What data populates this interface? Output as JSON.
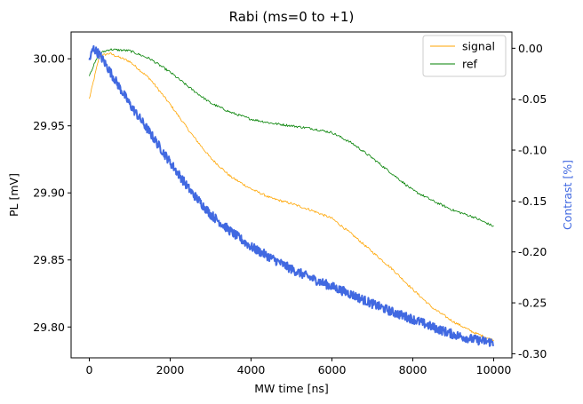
{
  "chart_data": {
    "type": "line",
    "title": "Rabi (ms=0 to +1)",
    "xlabel": "MW time [ns]",
    "ylabel": "PL [mV]",
    "y2label": "Contrast [%]",
    "xlim": [
      -450,
      10450
    ],
    "ylim": [
      29.777,
      30.02
    ],
    "y2lim": [
      -0.304,
      0.016
    ],
    "xticks": [
      0,
      2000,
      4000,
      6000,
      8000,
      10000
    ],
    "yticks": [
      29.8,
      29.85,
      29.9,
      29.95,
      30.0
    ],
    "y2ticks": [
      -0.3,
      -0.25,
      -0.2,
      -0.15,
      -0.1,
      -0.05,
      0.0
    ],
    "legend_position": "top-right",
    "colors": {
      "signal": "#ffa500",
      "ref": "#008000",
      "contrast": "#4169e1"
    },
    "series": [
      {
        "name": "signal",
        "axis": "left",
        "x": [
          0,
          250,
          500,
          1000,
          1500,
          2000,
          2500,
          3000,
          3500,
          4000,
          4500,
          5000,
          5500,
          6000,
          6500,
          7000,
          7500,
          8000,
          8500,
          9000,
          9500,
          10000
        ],
        "y": [
          29.97,
          30.002,
          30.004,
          29.998,
          29.985,
          29.966,
          29.945,
          29.926,
          29.912,
          29.903,
          29.896,
          29.892,
          29.887,
          29.881,
          29.869,
          29.856,
          29.843,
          29.828,
          29.814,
          29.804,
          29.796,
          29.79
        ]
      },
      {
        "name": "ref",
        "axis": "left",
        "x": [
          0,
          250,
          500,
          1000,
          1500,
          2000,
          2500,
          3000,
          3500,
          4000,
          4500,
          5000,
          5500,
          6000,
          6500,
          7000,
          7500,
          8000,
          8500,
          9000,
          9500,
          10000
        ],
        "y": [
          29.988,
          30.004,
          30.007,
          30.006,
          30.0,
          29.99,
          29.978,
          29.967,
          29.96,
          29.955,
          29.952,
          29.95,
          29.948,
          29.945,
          29.937,
          29.926,
          29.914,
          29.902,
          29.894,
          29.887,
          29.882,
          29.875
        ]
      },
      {
        "name": "",
        "axis": "right",
        "x": [
          0,
          100,
          250,
          500,
          1000,
          1500,
          2000,
          2500,
          3000,
          3500,
          4000,
          4500,
          5000,
          5500,
          6000,
          6500,
          7000,
          7500,
          8000,
          8500,
          9000,
          9500,
          10000
        ],
        "y": [
          -0.012,
          0.0,
          -0.006,
          -0.022,
          -0.055,
          -0.083,
          -0.112,
          -0.14,
          -0.163,
          -0.18,
          -0.195,
          -0.206,
          -0.217,
          -0.226,
          -0.234,
          -0.242,
          -0.251,
          -0.259,
          -0.266,
          -0.274,
          -0.281,
          -0.286,
          -0.289
        ]
      }
    ]
  }
}
